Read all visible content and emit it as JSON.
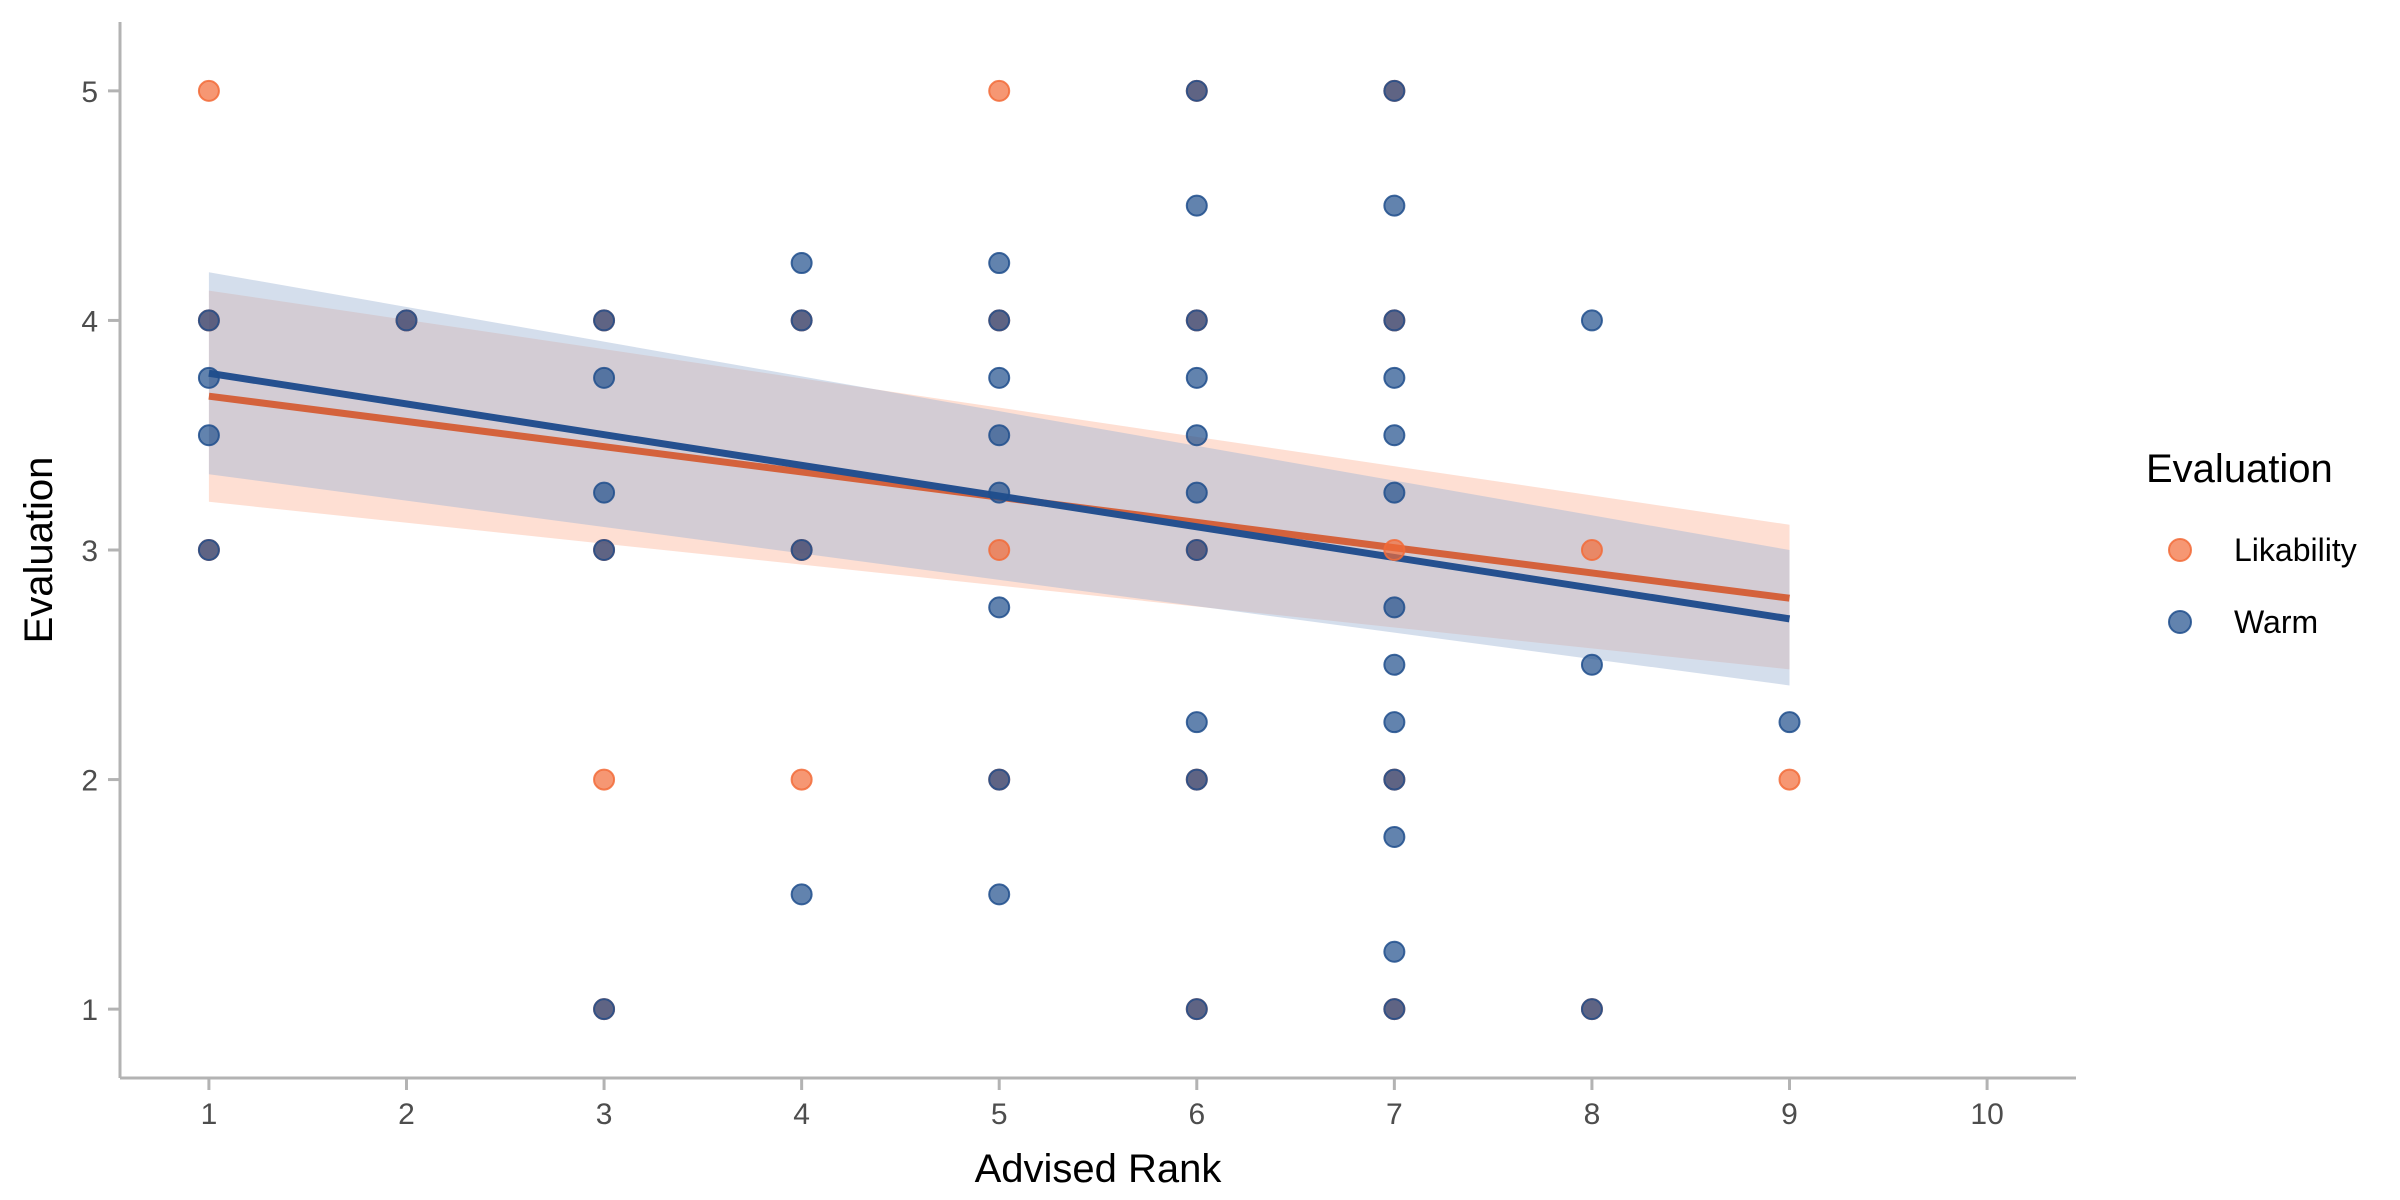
{
  "chart_data": {
    "type": "scatter",
    "xlabel": "Advised Rank",
    "ylabel": "Evaluation",
    "xlim": [
      0.55,
      10.45
    ],
    "ylim": [
      0.7,
      5.3
    ],
    "x_ticks": [
      1,
      2,
      3,
      4,
      5,
      6,
      7,
      8,
      9,
      10
    ],
    "y_ticks": [
      1,
      2,
      3,
      4,
      5
    ],
    "grid": false,
    "legend": {
      "title": "Evaluation",
      "placement": "right"
    },
    "series": [
      {
        "name": "Likability",
        "color": "#f26b38",
        "points": [
          [
            1,
            5
          ],
          [
            1,
            4
          ],
          [
            1,
            3
          ],
          [
            2,
            4
          ],
          [
            3,
            4
          ],
          [
            3,
            3
          ],
          [
            3,
            2
          ],
          [
            3,
            1
          ],
          [
            4,
            4
          ],
          [
            4,
            3
          ],
          [
            4,
            2
          ],
          [
            5,
            5
          ],
          [
            5,
            4
          ],
          [
            5,
            3
          ],
          [
            5,
            2
          ],
          [
            6,
            5
          ],
          [
            6,
            4
          ],
          [
            6,
            3
          ],
          [
            6,
            2
          ],
          [
            6,
            1
          ],
          [
            7,
            5
          ],
          [
            7,
            4
          ],
          [
            7,
            3
          ],
          [
            7,
            2
          ],
          [
            7,
            1
          ],
          [
            8,
            3
          ],
          [
            8,
            1
          ],
          [
            9,
            2
          ]
        ],
        "fit": {
          "x": [
            1,
            9
          ],
          "y": [
            3.67,
            2.79
          ],
          "ci_lower": [
            3.21,
            2.48
          ],
          "ci_upper": [
            4.13,
            3.11
          ]
        }
      },
      {
        "name": "Warm",
        "color": "#1f4e8c",
        "points": [
          [
            1,
            4
          ],
          [
            1,
            3.75
          ],
          [
            1,
            3.5
          ],
          [
            1,
            3
          ],
          [
            2,
            4
          ],
          [
            3,
            4
          ],
          [
            3,
            3.75
          ],
          [
            3,
            3.25
          ],
          [
            3,
            3
          ],
          [
            3,
            1
          ],
          [
            4,
            4.25
          ],
          [
            4,
            4
          ],
          [
            4,
            3
          ],
          [
            4,
            1.5
          ],
          [
            5,
            4.25
          ],
          [
            5,
            4
          ],
          [
            5,
            3.75
          ],
          [
            5,
            3.5
          ],
          [
            5,
            3.25
          ],
          [
            5,
            2.75
          ],
          [
            5,
            2
          ],
          [
            5,
            1.5
          ],
          [
            6,
            5
          ],
          [
            6,
            4.5
          ],
          [
            6,
            4
          ],
          [
            6,
            3.75
          ],
          [
            6,
            3.5
          ],
          [
            6,
            3.25
          ],
          [
            6,
            3
          ],
          [
            6,
            2.25
          ],
          [
            6,
            2
          ],
          [
            6,
            1
          ],
          [
            7,
            5
          ],
          [
            7,
            4.5
          ],
          [
            7,
            4
          ],
          [
            7,
            3.75
          ],
          [
            7,
            3.5
          ],
          [
            7,
            3.25
          ],
          [
            7,
            2.75
          ],
          [
            7,
            2.5
          ],
          [
            7,
            2.25
          ],
          [
            7,
            2
          ],
          [
            7,
            1.75
          ],
          [
            7,
            1.25
          ],
          [
            7,
            1
          ],
          [
            8,
            4
          ],
          [
            8,
            2.5
          ],
          [
            8,
            1
          ],
          [
            9,
            2.25
          ]
        ],
        "fit": {
          "x": [
            1,
            9
          ],
          "y": [
            3.77,
            2.7
          ],
          "ci_lower": [
            3.33,
            2.41
          ],
          "ci_upper": [
            4.21,
            3.0
          ]
        }
      }
    ]
  }
}
